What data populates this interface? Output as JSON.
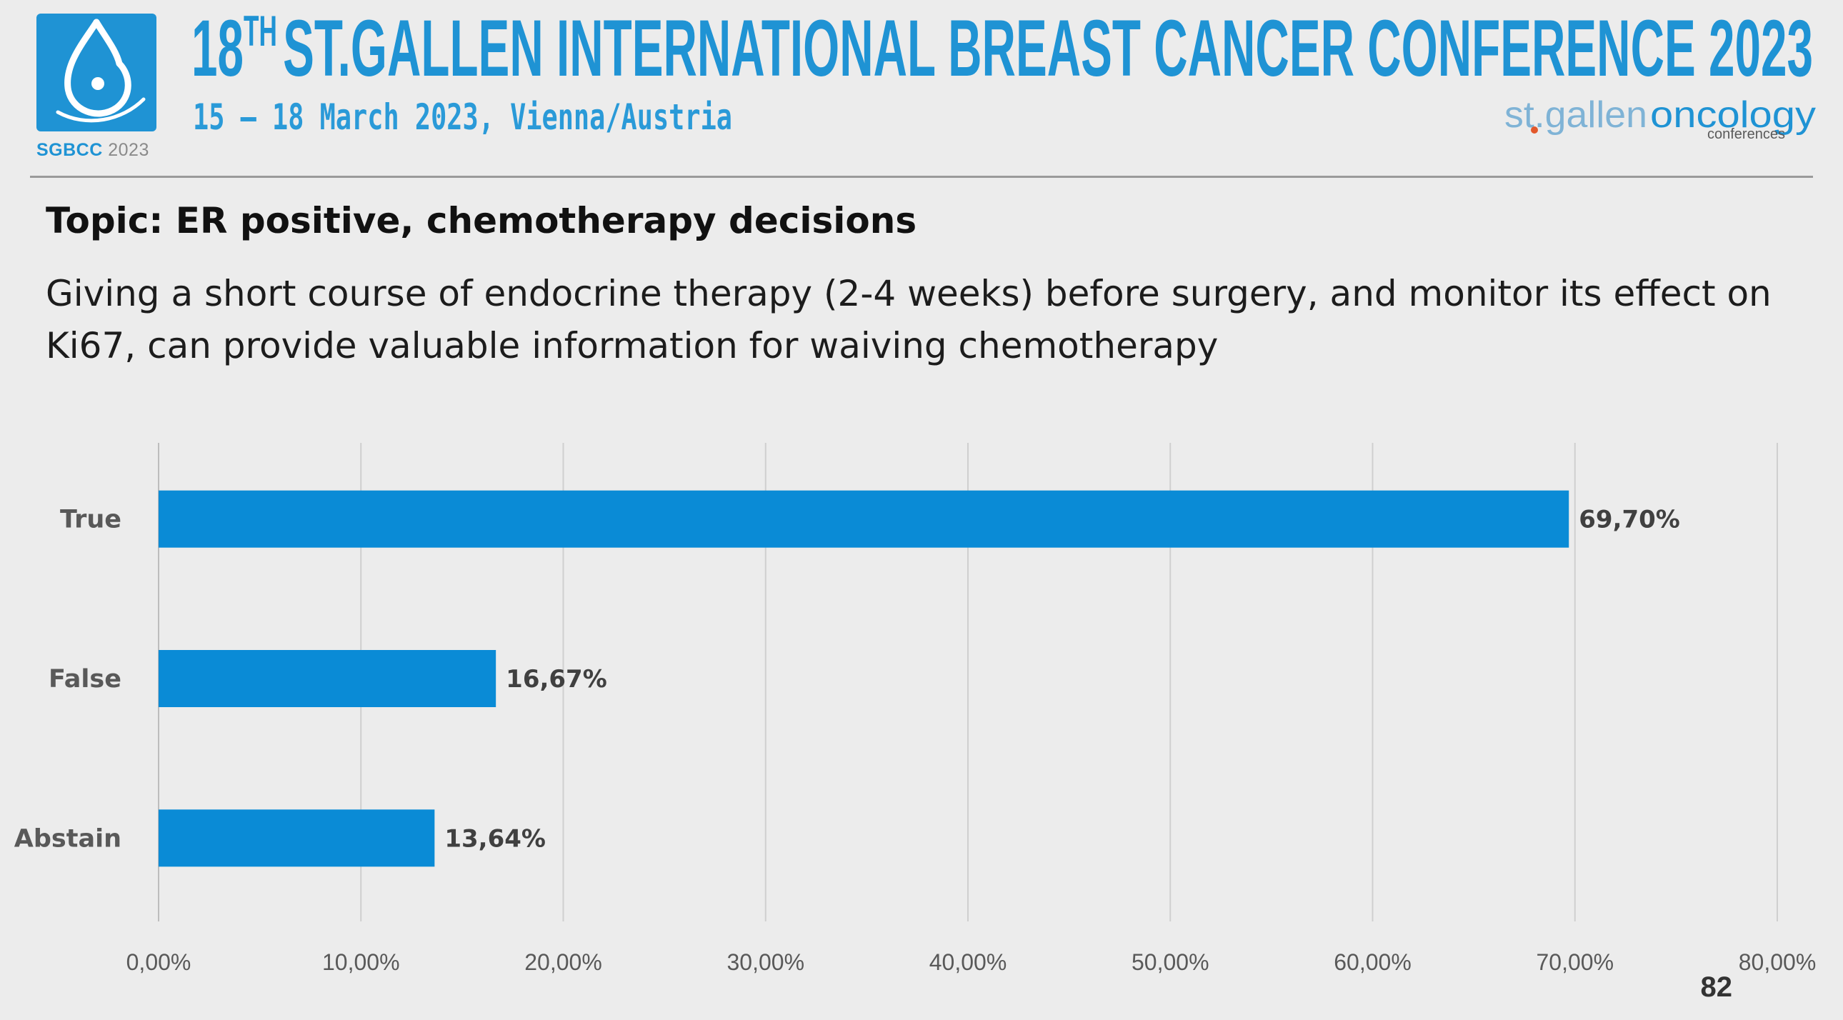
{
  "header": {
    "title_ordinal": "18",
    "title_ordinal_suffix": "TH",
    "title_rest": "ST.GALLEN INTERNATIONAL BREAST CANCER CONFERENCE 2023",
    "dates": "15 – 18 March 2023, Vienna/Austria",
    "logo_caption_bold": "SGBCC",
    "logo_caption_rest": " 2023",
    "brand_part1": "st.gallen",
    "brand_part2": "oncology",
    "brand_sub": "conferences"
  },
  "slide": {
    "topic": "Topic: ER positive, chemotherapy decisions",
    "statement": "Giving a short course of endocrine therapy (2-4 weeks) before surgery, and monitor its effect on Ki67, can provide valuable information for waiving chemotherapy",
    "page_number": "82"
  },
  "colors": {
    "accent": "#1f93d4",
    "bar": "#0a8bd6",
    "grid": "#cfcfcf",
    "background": "#ececec"
  },
  "chart_data": {
    "type": "bar",
    "orientation": "horizontal",
    "categories": [
      "True",
      "False",
      "Abstain"
    ],
    "values": [
      69.7,
      16.67,
      13.64
    ],
    "data_labels": [
      "69,70%",
      "16,67%",
      "13,64%"
    ],
    "xlim": [
      0,
      80
    ],
    "xticks": [
      0,
      10,
      20,
      30,
      40,
      50,
      60,
      70,
      80
    ],
    "xtick_labels": [
      "0,00%",
      "10,00%",
      "20,00%",
      "30,00%",
      "40,00%",
      "50,00%",
      "60,00%",
      "70,00%",
      "80,00%"
    ],
    "grid": true,
    "title": "",
    "xlabel": "",
    "ylabel": ""
  }
}
